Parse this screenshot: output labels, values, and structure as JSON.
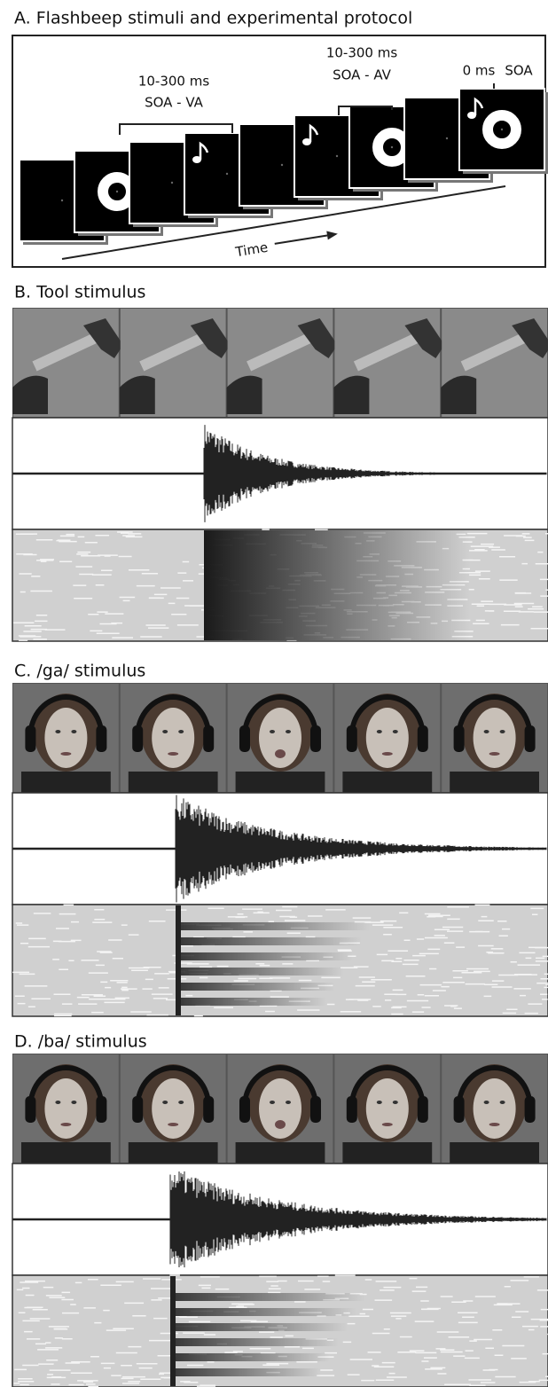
{
  "panel_a": {
    "title": "A. Flashbeep stimuli and experimental protocol",
    "soa_va_time": "10-300 ms",
    "soa_va": "SOA - VA",
    "soa_av_time": "10-300 ms",
    "soa_av": "SOA - AV",
    "sync_time": "0 ms",
    "sync": "SOA",
    "time": "Time"
  },
  "panel_b": {
    "title": "B. Tool stimulus"
  },
  "panel_c": {
    "title": "C. /ga/ stimulus"
  },
  "panel_d": {
    "title": "D. /ba/ stimulus"
  }
}
